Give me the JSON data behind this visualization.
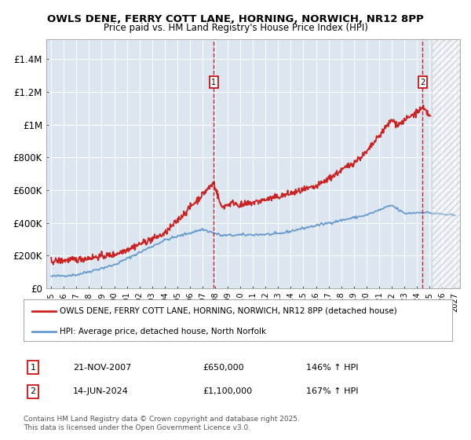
{
  "title1": "OWLS DENE, FERRY COTT LANE, HORNING, NORWICH, NR12 8PP",
  "title2": "Price paid vs. HM Land Registry's House Price Index (HPI)",
  "ylabel_ticks": [
    "£0",
    "£200K",
    "£400K",
    "£600K",
    "£800K",
    "£1M",
    "£1.2M",
    "£1.4M"
  ],
  "ytick_vals": [
    0,
    200000,
    400000,
    600000,
    800000,
    1000000,
    1200000,
    1400000
  ],
  "ylim": [
    0,
    1520000
  ],
  "xlim_start": 1994.6,
  "xlim_end": 2027.4,
  "sale1_x": 2007.9,
  "sale1_y": 650000,
  "sale2_x": 2024.46,
  "sale2_y": 1100000,
  "legend_line1": "OWLS DENE, FERRY COTT LANE, HORNING, NORWICH, NR12 8PP (detached house)",
  "legend_line2": "HPI: Average price, detached house, North Norfolk",
  "annotation1_label": "1",
  "annotation1_date": "21-NOV-2007",
  "annotation1_price": "£650,000",
  "annotation1_hpi": "146% ↑ HPI",
  "annotation2_label": "2",
  "annotation2_date": "14-JUN-2024",
  "annotation2_price": "£1,100,000",
  "annotation2_hpi": "167% ↑ HPI",
  "footer": "Contains HM Land Registry data © Crown copyright and database right 2025.\nThis data is licensed under the Open Government Licence v3.0.",
  "bg_color": "#dce6f1",
  "red_line_color": "#cc2222",
  "blue_line_color": "#6699cc",
  "grid_color": "#ffffff",
  "future_shade_start": 2025.17
}
